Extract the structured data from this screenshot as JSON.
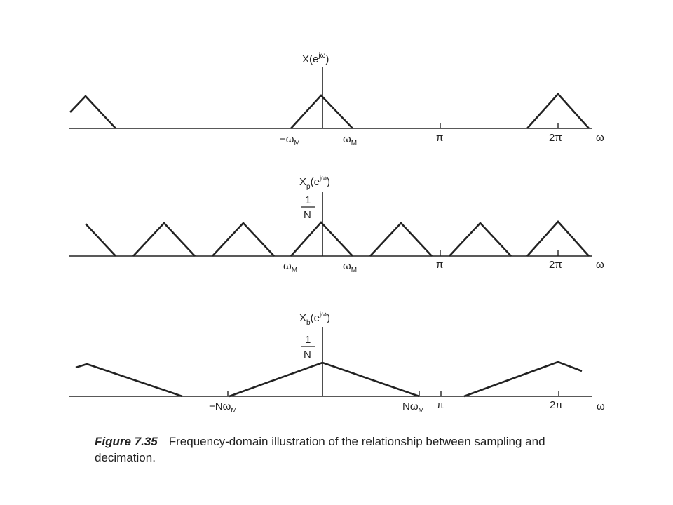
{
  "panels": [
    {
      "title": {
        "base": "X",
        "sub": "",
        "tail": "(e",
        "sup": "jω",
        "close": ")"
      },
      "frac": null,
      "ticks": [
        {
          "main": "−ω",
          "sub": "M"
        },
        {
          "main": "ω",
          "sub": "M"
        },
        {
          "main": "π",
          "sub": ""
        },
        {
          "main": "2π",
          "sub": ""
        }
      ],
      "axis_label": "ω"
    },
    {
      "title": {
        "base": "X",
        "sub": "p",
        "tail": "(e",
        "sup": "jω",
        "close": ")"
      },
      "frac": {
        "num": "1",
        "den": "N"
      },
      "ticks": [
        {
          "main": "ω",
          "sub": "M"
        },
        {
          "main": "ω",
          "sub": "M"
        },
        {
          "main": "π",
          "sub": ""
        },
        {
          "main": "2π",
          "sub": ""
        }
      ],
      "axis_label": "ω"
    },
    {
      "title": {
        "base": "X",
        "sub": "b",
        "tail": "(e",
        "sup": "jω",
        "close": ")"
      },
      "frac": {
        "num": "1",
        "den": "N"
      },
      "ticks": [
        {
          "main": "−Nω",
          "sub": "M"
        },
        {
          "main": "Nω",
          "sub": "M"
        },
        {
          "main": "π",
          "sub": ""
        },
        {
          "main": "2π",
          "sub": ""
        }
      ],
      "axis_label": "ω"
    }
  ],
  "caption": {
    "figure_number": "Figure 7.35",
    "text": "Frequency-domain illustration of the relationship between sampling and decimation."
  }
}
